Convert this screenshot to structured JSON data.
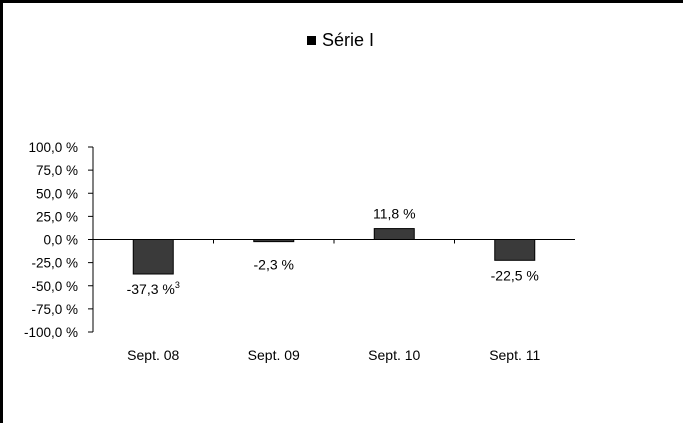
{
  "chart_data": {
    "type": "bar",
    "title": "",
    "legend": {
      "position": "top-center",
      "entries": [
        "Série I"
      ]
    },
    "series": [
      {
        "name": "Série I",
        "values": [
          -37.3,
          -2.3,
          11.8,
          -22.5
        ]
      }
    ],
    "categories": [
      "Sept. 08",
      "Sept. 09",
      "Sept. 10",
      "Sept. 11"
    ],
    "data_labels": [
      "-37,3 %",
      "-2,3 %",
      "11,8 %",
      "-22,5 %"
    ],
    "label_footnotes": [
      "3",
      "",
      "",
      ""
    ],
    "ylim": [
      -100,
      100
    ],
    "ytick_values": [
      100,
      75,
      50,
      25,
      0,
      -25,
      -50,
      -75,
      -100
    ],
    "ytick_labels": [
      "100,0 %",
      "75,0 %",
      "50,0 %",
      "25,0 %",
      "0,0 %",
      "-25,0 %",
      "-50,0 %",
      "-75,0 %",
      "-100,0 %"
    ],
    "xlabel": "",
    "ylabel": "",
    "grid": false,
    "colors": {
      "bar": "#3a3a3a",
      "bar_stroke": "#000000",
      "axis": "#000000"
    }
  }
}
